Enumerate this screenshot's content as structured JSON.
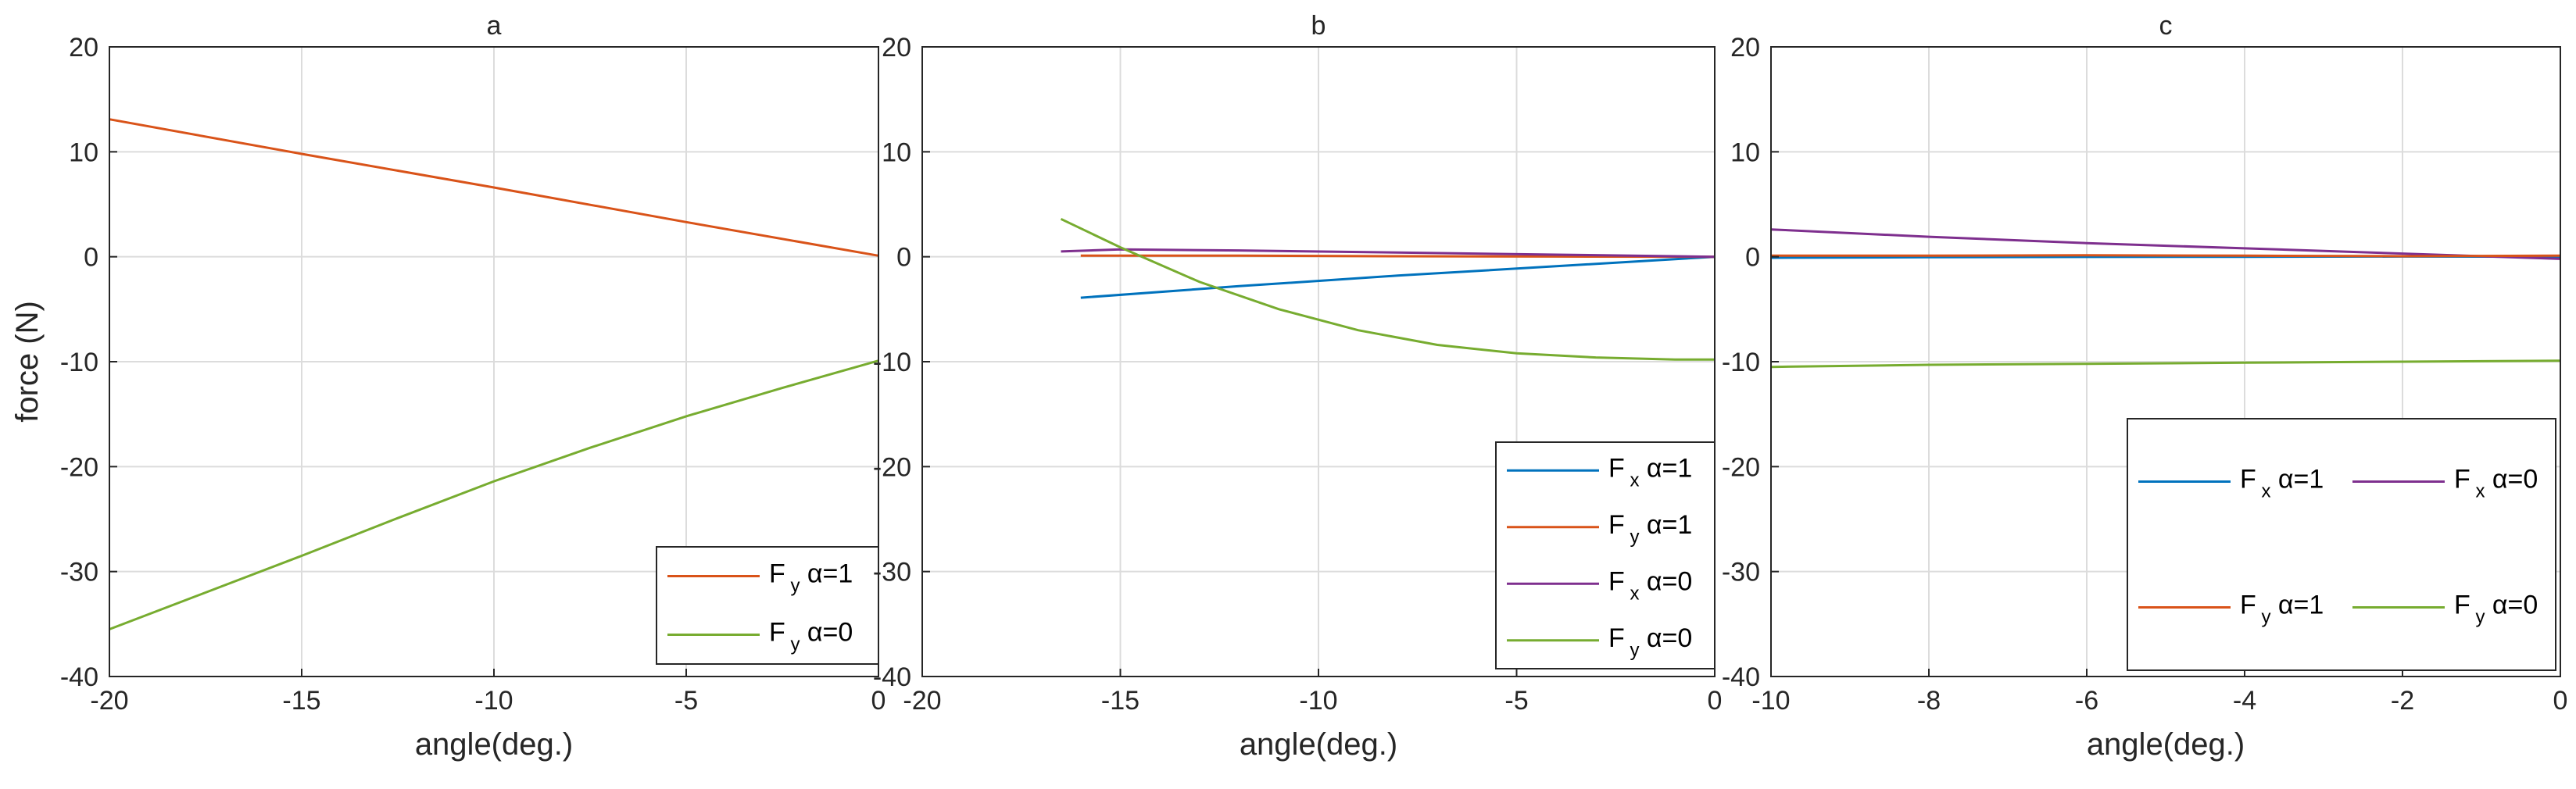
{
  "chart_data": [
    {
      "type": "line",
      "title": "a",
      "xlabel": "angle(deg.)",
      "ylabel": "force (N)",
      "xlim": [
        -20,
        0
      ],
      "ylim": [
        -40,
        20
      ],
      "xticks": [
        -20,
        -15,
        -10,
        -5,
        0
      ],
      "yticks": [
        -40,
        -30,
        -20,
        -10,
        0,
        10,
        20
      ],
      "grid": true,
      "legend_position": "bottom-right",
      "legend_columns": 1,
      "series": [
        {
          "name": "Fy α=1",
          "legend_main": "F",
          "legend_sub": "y",
          "legend_suffix": " α=1",
          "color": "#d95319",
          "x": [
            -20,
            -15,
            -10,
            -5,
            0
          ],
          "y": [
            13.1,
            9.8,
            6.6,
            3.3,
            0.1
          ]
        },
        {
          "name": "Fy α=0",
          "legend_main": "F",
          "legend_sub": "y",
          "legend_suffix": " α=0",
          "color": "#77ac30",
          "x": [
            -20,
            -17.5,
            -15,
            -12.5,
            -10,
            -7.5,
            -5,
            -2.5,
            0
          ],
          "y": [
            -35.5,
            -32.0,
            -28.5,
            -24.9,
            -21.4,
            -18.2,
            -15.2,
            -12.5,
            -9.9
          ]
        }
      ]
    },
    {
      "type": "line",
      "title": "b",
      "xlabel": "angle(deg.)",
      "ylabel": "",
      "xlim": [
        -20,
        0
      ],
      "ylim": [
        -40,
        20
      ],
      "xticks": [
        -20,
        -15,
        -10,
        -5,
        0
      ],
      "yticks": [
        -40,
        -30,
        -20,
        -10,
        0,
        10,
        20
      ],
      "grid": true,
      "legend_position": "bottom-right",
      "legend_columns": 1,
      "series": [
        {
          "name": "Fx α=1",
          "legend_main": "F",
          "legend_sub": "x",
          "legend_suffix": " α=1",
          "color": "#0072bd",
          "x": [
            -16,
            -12,
            -8,
            -4,
            0
          ],
          "y": [
            -3.9,
            -2.8,
            -1.8,
            -0.9,
            0
          ]
        },
        {
          "name": "Fy α=1",
          "legend_main": "F",
          "legend_sub": "y",
          "legend_suffix": " α=1",
          "color": "#d95319",
          "x": [
            -16,
            -12,
            -8,
            -4,
            0
          ],
          "y": [
            0.1,
            0.1,
            0.05,
            0.02,
            0
          ]
        },
        {
          "name": "Fx α=0",
          "legend_main": "F",
          "legend_sub": "x",
          "legend_suffix": " α=0",
          "color": "#7e2f8e",
          "x": [
            -16.5,
            -15,
            -12,
            -8,
            -4,
            0
          ],
          "y": [
            0.5,
            0.7,
            0.6,
            0.4,
            0.2,
            0
          ]
        },
        {
          "name": "Fy α=0",
          "legend_main": "F",
          "legend_sub": "y",
          "legend_suffix": " α=0",
          "color": "#77ac30",
          "x": [
            -16.5,
            -15,
            -13,
            -11,
            -9,
            -7,
            -5,
            -3,
            -1,
            0
          ],
          "y": [
            3.6,
            0.9,
            -2.4,
            -5.0,
            -7.0,
            -8.4,
            -9.2,
            -9.6,
            -9.8,
            -9.8
          ]
        }
      ]
    },
    {
      "type": "line",
      "title": "c",
      "xlabel": "angle(deg.)",
      "ylabel": "",
      "xlim": [
        -10,
        0
      ],
      "ylim": [
        -40,
        20
      ],
      "xticks": [
        -10,
        -8,
        -6,
        -4,
        -2,
        0
      ],
      "yticks": [
        -40,
        -30,
        -20,
        -10,
        0,
        10,
        20
      ],
      "grid": true,
      "legend_position": "bottom-right",
      "legend_columns": 2,
      "series": [
        {
          "name": "Fx α=1",
          "legend_main": "F",
          "legend_sub": "x",
          "legend_suffix": " α=1",
          "color": "#0072bd",
          "x": [
            -10,
            -8,
            -6,
            -4,
            -2,
            0
          ],
          "y": [
            -0.1,
            -0.05,
            -0.02,
            0,
            0.02,
            0
          ]
        },
        {
          "name": "Fx α=0",
          "legend_main": "F",
          "legend_sub": "x",
          "legend_suffix": " α=0",
          "color": "#7e2f8e",
          "x": [
            -10,
            -8,
            -6,
            -4,
            -2,
            0
          ],
          "y": [
            2.6,
            1.9,
            1.3,
            0.8,
            0.3,
            -0.2
          ]
        },
        {
          "name": "Fy α=1",
          "legend_main": "F",
          "legend_sub": "y",
          "legend_suffix": " α=1",
          "color": "#d95319",
          "x": [
            -10,
            -8,
            -6,
            -4,
            -2,
            0
          ],
          "y": [
            0.1,
            0.1,
            0.15,
            0.1,
            0.05,
            0.1
          ]
        },
        {
          "name": "Fy α=0",
          "legend_main": "F",
          "legend_sub": "y",
          "legend_suffix": " α=0",
          "color": "#77ac30",
          "x": [
            -10,
            -8,
            -6,
            -4,
            -2,
            0
          ],
          "y": [
            -10.5,
            -10.3,
            -10.2,
            -10.1,
            -10.0,
            -9.9
          ]
        }
      ]
    }
  ]
}
